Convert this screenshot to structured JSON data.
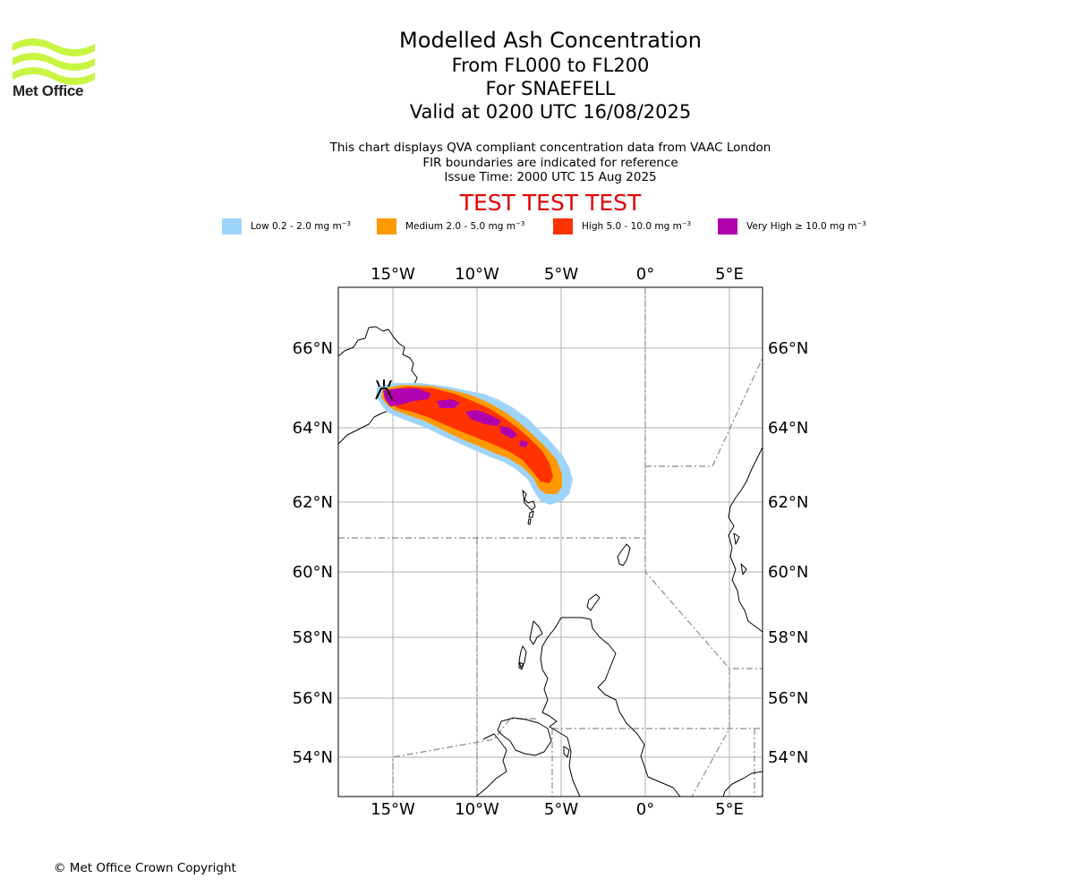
{
  "branding": {
    "logo_text": "Met Office",
    "logo_color": "#c8f542"
  },
  "header": {
    "title": "Modelled Ash Concentration",
    "level_range": "From FL000 to FL200",
    "volcano": "For SNAEFELL",
    "valid_time": "Valid at 0200 UTC 16/08/2025"
  },
  "subtitle": {
    "line1": "This chart displays QVA compliant concentration data from VAAC London",
    "line2": "FIR boundaries are indicated for reference",
    "issue_time": "Issue Time: 2000 UTC 15 Aug 2025"
  },
  "test_banner": {
    "text": "TEST TEST TEST",
    "color": "#e00000"
  },
  "legend": [
    {
      "label": "Low 0.2 - 2.0 mg m",
      "unit_power": "−3",
      "color": "#9fd4fa"
    },
    {
      "label": "Medium 2.0 - 5.0 mg m",
      "unit_power": "−3",
      "color": "#ff9900"
    },
    {
      "label": "High 5.0 - 10.0 mg m",
      "unit_power": "−3",
      "color": "#ff3300"
    },
    {
      "label": "Very High  ≥  10.0 mg m",
      "unit_power": "−3",
      "color": "#b000b0"
    }
  ],
  "map": {
    "lon_ticks": [
      "15°W",
      "10°W",
      "5°W",
      "0°",
      "5°E"
    ],
    "lat_ticks": [
      "66°N",
      "64°N",
      "62°N",
      "60°N",
      "58°N",
      "56°N",
      "54°N"
    ],
    "volcano_marker": "volcano-symbol"
  },
  "footer": {
    "copyright": "© Met Office Crown Copyright"
  }
}
